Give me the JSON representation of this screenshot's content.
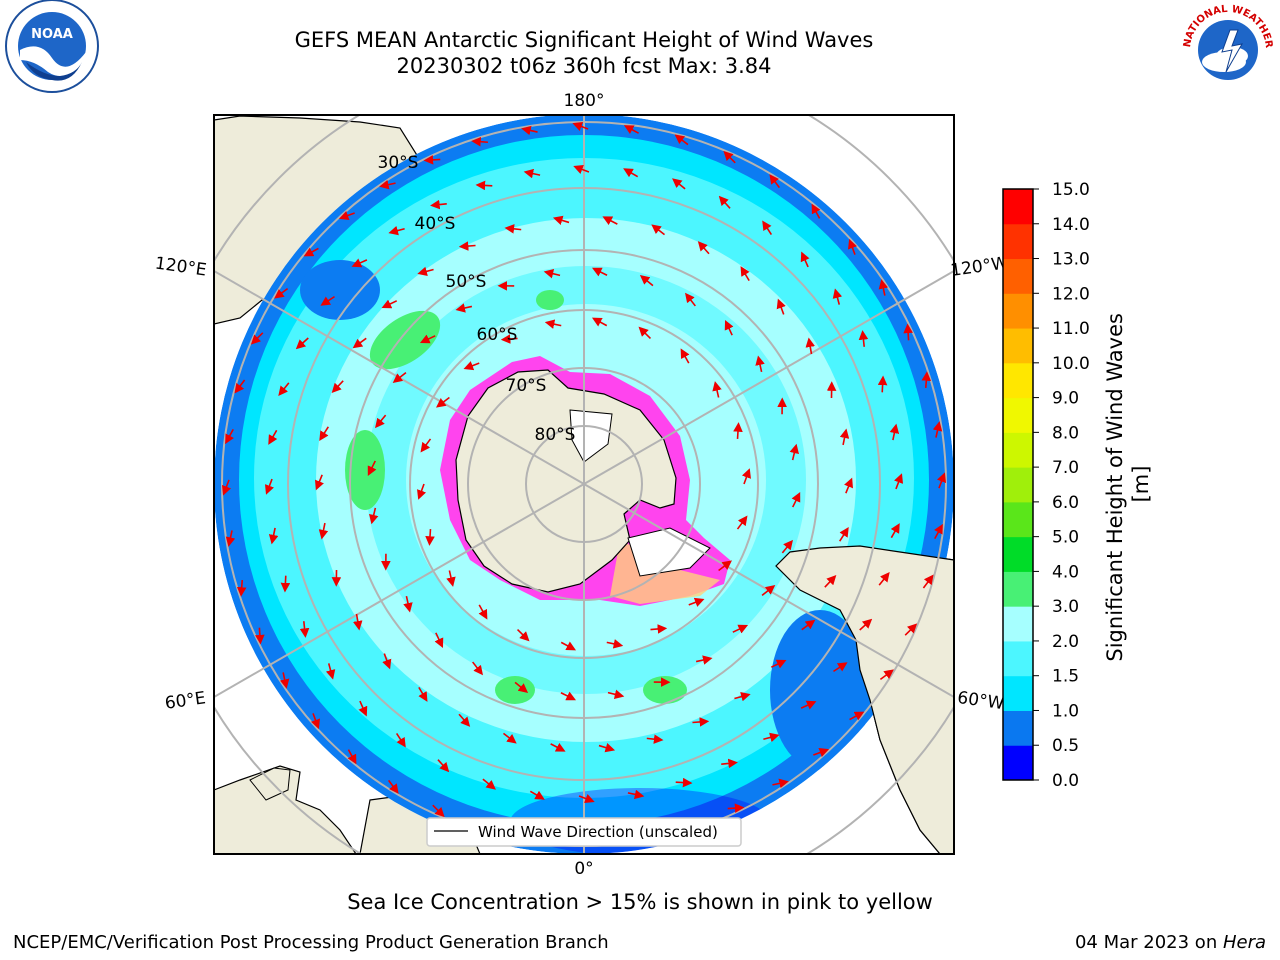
{
  "title": {
    "line1": "GEFS MEAN Antarctic Significant Height of Wind Waves",
    "line2": "20230302 t06z 360h fcst   Max: 3.84"
  },
  "logos": {
    "noaa_text": "NOAA",
    "nws_text": "NATIONAL WEATHER SERVICE"
  },
  "map": {
    "lon_labels": [
      "180°",
      "120°E",
      "120°W",
      "60°E",
      "60°W",
      "0°"
    ],
    "lat_labels": [
      "30°S",
      "40°S",
      "50°S",
      "60°S",
      "70°S",
      "80°S"
    ],
    "legend_label": "Wind Wave Direction (unscaled)",
    "colors": {
      "land": "#eeecda",
      "ocean_high": "#a6ffff",
      "ocean_mid": "#00e6ff",
      "ocean_low": "#0c7cf2",
      "ice": "#ff44ee",
      "arrow": "#ee0000"
    }
  },
  "colorbar": {
    "label": "Significant Height of Wind Waves [m]",
    "ticks": [
      "0.0",
      "0.5",
      "1.0",
      "1.5",
      "2.0",
      "3.0",
      "4.0",
      "5.0",
      "6.0",
      "7.0",
      "8.0",
      "9.0",
      "10.0",
      "11.0",
      "12.0",
      "13.0",
      "14.0",
      "15.0"
    ],
    "colors": [
      "#0000ff",
      "#0a78f0",
      "#00e6ff",
      "#4cf6ff",
      "#a6ffff",
      "#48f075",
      "#00dc28",
      "#5ae61a",
      "#a0ef0b",
      "#cdf700",
      "#f0f800",
      "#ffe700",
      "#ffbd00",
      "#ff8f00",
      "#ff6000",
      "#ff3200",
      "#ff0000"
    ]
  },
  "ice_note": "Sea Ice Concentration > 15% is shown in pink to yellow",
  "footer": {
    "left": "NCEP/EMC/Verification Post Processing Product Generation Branch",
    "date": "04 Mar 2023 on ",
    "machine": "Hera"
  }
}
